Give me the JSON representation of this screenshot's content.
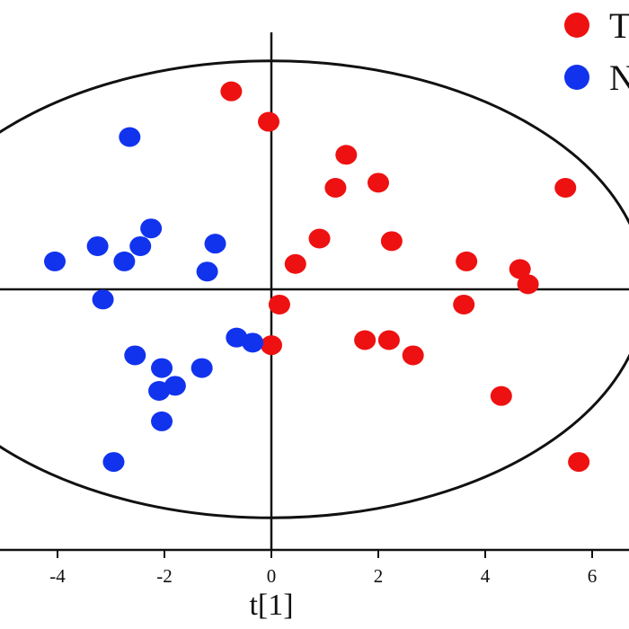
{
  "chart_data": {
    "type": "scatter",
    "xlabel": "t[1]",
    "x_ticks": [
      -4,
      -2,
      0,
      2,
      4,
      6
    ],
    "grid": false,
    "legend_position": "top-right",
    "reference_ellipse": {
      "center": [
        0,
        0
      ],
      "semi_axes": [
        7.0,
        4.5
      ]
    },
    "series": [
      {
        "name": "T",
        "color": "#ee1111",
        "points": [
          [
            -0.75,
            3.9
          ],
          [
            -0.05,
            3.3
          ],
          [
            1.4,
            2.65
          ],
          [
            1.2,
            2.0
          ],
          [
            2.0,
            2.1
          ],
          [
            5.5,
            2.0
          ],
          [
            0.9,
            1.0
          ],
          [
            2.25,
            0.95
          ],
          [
            0.45,
            0.5
          ],
          [
            3.65,
            0.55
          ],
          [
            4.65,
            0.4
          ],
          [
            4.8,
            0.1
          ],
          [
            0.15,
            -0.3
          ],
          [
            3.6,
            -0.3
          ],
          [
            0.0,
            -1.1
          ],
          [
            1.75,
            -1.0
          ],
          [
            2.2,
            -1.0
          ],
          [
            2.65,
            -1.3
          ],
          [
            4.3,
            -2.1
          ],
          [
            5.75,
            -3.4
          ]
        ]
      },
      {
        "name": "N",
        "color": "#1133ee",
        "points": [
          [
            -2.65,
            3.0
          ],
          [
            -2.25,
            1.2
          ],
          [
            -3.25,
            0.85
          ],
          [
            -2.45,
            0.85
          ],
          [
            -1.05,
            0.9
          ],
          [
            -4.05,
            0.55
          ],
          [
            -2.75,
            0.55
          ],
          [
            -1.2,
            0.35
          ],
          [
            -3.15,
            -0.2
          ],
          [
            -0.65,
            -0.95
          ],
          [
            -0.35,
            -1.05
          ],
          [
            -2.55,
            -1.3
          ],
          [
            -2.05,
            -1.55
          ],
          [
            -1.3,
            -1.55
          ],
          [
            -1.8,
            -1.9
          ],
          [
            -2.1,
            -2.0
          ],
          [
            -2.05,
            -2.6
          ],
          [
            -2.95,
            -3.4
          ]
        ]
      }
    ]
  }
}
